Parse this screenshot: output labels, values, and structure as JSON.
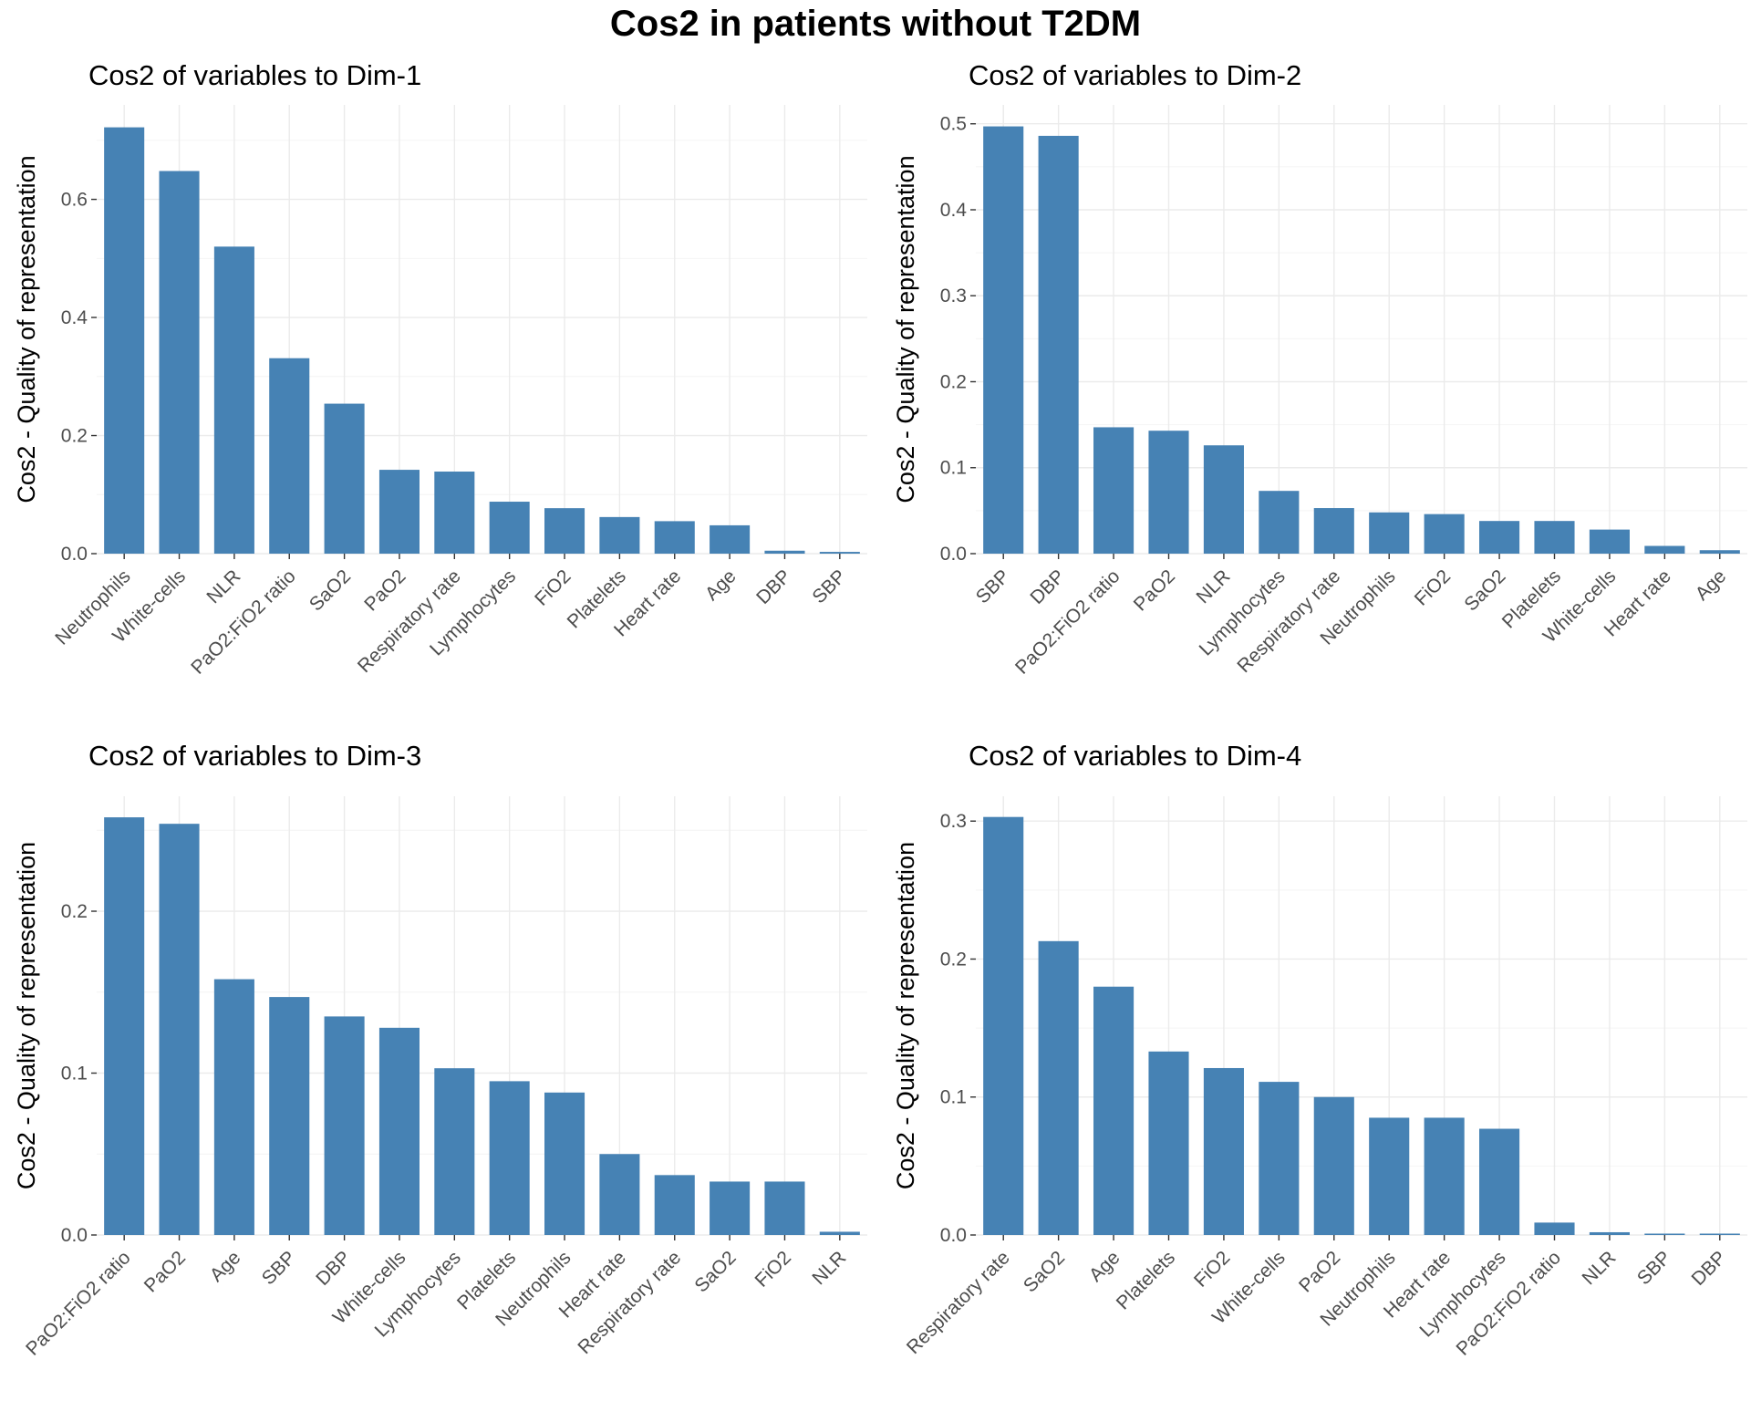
{
  "title": "Cos2 in patients without T2DM",
  "colors": {
    "bar": "#4682b4"
  },
  "chart_data": [
    {
      "type": "bar",
      "title": "Cos2 of variables to Dim-1",
      "ylabel": "Cos2 - Quality of representation",
      "xlabel": "",
      "categories": [
        "Neutrophils",
        "White-cells",
        "NLR",
        "PaO2:FiO2 ratio",
        "SaO2",
        "PaO2",
        "Respiratory rate",
        "Lymphocytes",
        "FiO2",
        "Platelets",
        "Heart rate",
        "Age",
        "DBP",
        "SBP"
      ],
      "values": [
        0.722,
        0.648,
        0.52,
        0.331,
        0.254,
        0.142,
        0.139,
        0.088,
        0.077,
        0.062,
        0.055,
        0.048,
        0.005,
        0.003
      ],
      "ylim": [
        0,
        0.76
      ],
      "yticks": [
        0.0,
        0.2,
        0.4,
        0.6
      ],
      "ytick_labels": [
        "0.0",
        "0.2",
        "0.4",
        "0.6"
      ],
      "grid": true
    },
    {
      "type": "bar",
      "title": "Cos2 of variables to Dim-2",
      "ylabel": "Cos2 - Quality of representation",
      "xlabel": "",
      "categories": [
        "SBP",
        "DBP",
        "PaO2:FiO2 ratio",
        "PaO2",
        "NLR",
        "Lymphocytes",
        "Respiratory rate",
        "Neutrophils",
        "FiO2",
        "SaO2",
        "Platelets",
        "White-cells",
        "Heart rate",
        "Age"
      ],
      "values": [
        0.497,
        0.486,
        0.147,
        0.143,
        0.126,
        0.073,
        0.053,
        0.048,
        0.046,
        0.038,
        0.038,
        0.028,
        0.009,
        0.004
      ],
      "ylim": [
        0,
        0.522
      ],
      "yticks": [
        0.0,
        0.1,
        0.2,
        0.3,
        0.4,
        0.5
      ],
      "ytick_labels": [
        "0.0",
        "0.1",
        "0.2",
        "0.3",
        "0.4",
        "0.5"
      ],
      "grid": true
    },
    {
      "type": "bar",
      "title": "Cos2 of variables to Dim-3",
      "ylabel": "Cos2 - Quality of representation",
      "xlabel": "",
      "categories": [
        "PaO2:FiO2 ratio",
        "PaO2",
        "Age",
        "SBP",
        "DBP",
        "White-cells",
        "Lymphocytes",
        "Platelets",
        "Neutrophils",
        "Heart rate",
        "Respiratory rate",
        "SaO2",
        "FiO2",
        "NLR"
      ],
      "values": [
        0.258,
        0.254,
        0.158,
        0.147,
        0.135,
        0.128,
        0.103,
        0.095,
        0.088,
        0.05,
        0.037,
        0.033,
        0.033,
        0.002
      ],
      "ylim": [
        0,
        0.271
      ],
      "yticks": [
        0.0,
        0.1,
        0.2
      ],
      "ytick_labels": [
        "0.0",
        "0.1",
        "0.2"
      ],
      "grid": true
    },
    {
      "type": "bar",
      "title": "Cos2 of variables to Dim-4",
      "ylabel": "Cos2 - Quality of representation",
      "xlabel": "",
      "categories": [
        "Respiratory rate",
        "SaO2",
        "Age",
        "Platelets",
        "FiO2",
        "White-cells",
        "PaO2",
        "Neutrophils",
        "Heart rate",
        "Lymphocytes",
        "PaO2:FiO2 ratio",
        "NLR",
        "SBP",
        "DBP"
      ],
      "values": [
        0.303,
        0.213,
        0.18,
        0.133,
        0.121,
        0.111,
        0.1,
        0.085,
        0.085,
        0.077,
        0.009,
        0.002,
        0.001,
        0.001
      ],
      "ylim": [
        0,
        0.318
      ],
      "yticks": [
        0.0,
        0.1,
        0.2,
        0.3
      ],
      "ytick_labels": [
        "0.0",
        "0.1",
        "0.2",
        "0.3"
      ],
      "grid": true
    }
  ]
}
